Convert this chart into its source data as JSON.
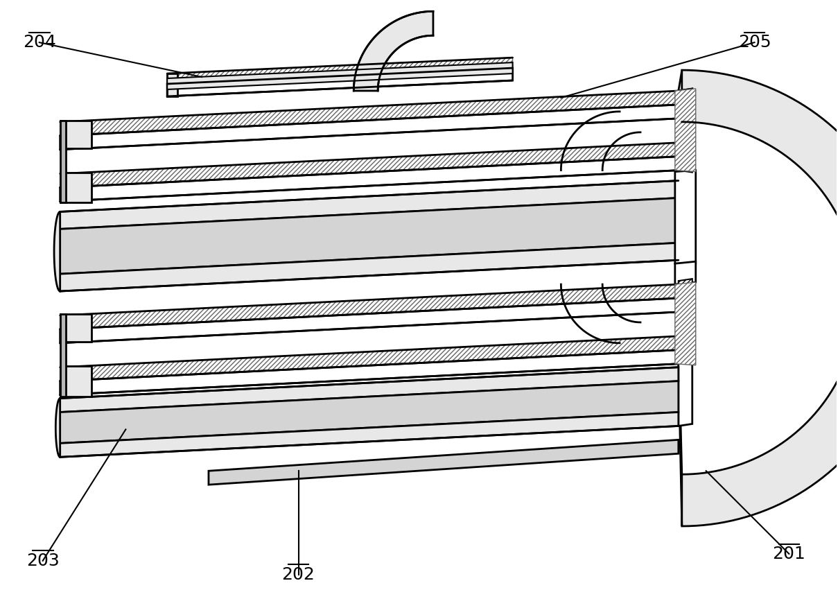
{
  "background_color": "#ffffff",
  "line_color": "#000000",
  "label_fontsize": 18,
  "figsize": [
    12.09,
    8.77
  ],
  "dpi": 100,
  "gray_light": "#e8e8e8",
  "gray_mid": "#d4d4d4",
  "gray_dark": "#b8b8b8",
  "white": "#ffffff",
  "hatch_gray": "#888888"
}
